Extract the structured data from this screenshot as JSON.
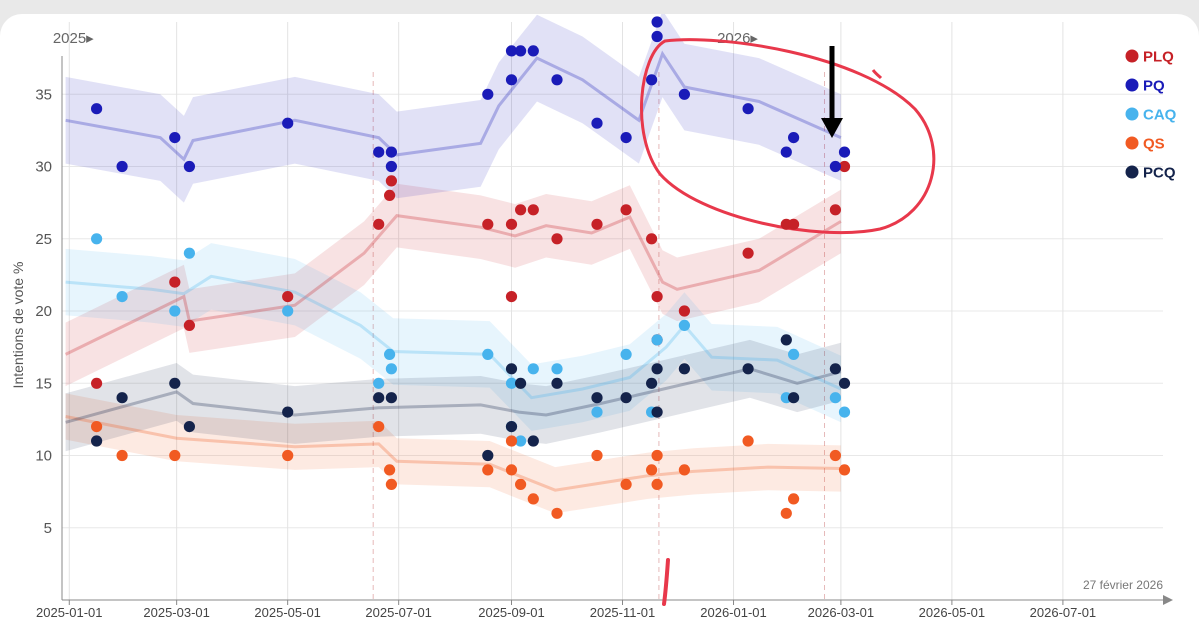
{
  "chart_data": {
    "type": "scatter",
    "ylabel": "Intentions de vote %",
    "ylim": [
      0,
      40
    ],
    "yticks": [
      5,
      10,
      15,
      20,
      25,
      30,
      35
    ],
    "xlim": [
      "2024-12-28",
      "2026-08-25"
    ],
    "xticks": [
      {
        "date": "2025-01-01",
        "label": "2025-01-01"
      },
      {
        "date": "2025-03-01",
        "label": "2025-03-01"
      },
      {
        "date": "2025-05-01",
        "label": "2025-05-01"
      },
      {
        "date": "2025-07-01",
        "label": "2025-07-01"
      },
      {
        "date": "2025-09-01",
        "label": "2025-09-01"
      },
      {
        "date": "2025-11-01",
        "label": "2025-11-01"
      },
      {
        "date": "2026-01-01",
        "label": "2026-01-01"
      },
      {
        "date": "2026-03-01",
        "label": "2026-03-01"
      },
      {
        "date": "2026-05-01",
        "label": "2026-05-01"
      },
      {
        "date": "2026-07-01",
        "label": "2026-07-01"
      }
    ],
    "year_markers": [
      {
        "date": "2025-01-01",
        "label": "2025▸"
      },
      {
        "date": "2026-01-01",
        "label": "2026▸"
      }
    ],
    "date_annotation": "27 février 2026",
    "event_lines": [
      "2025-06-17",
      "2025-11-21",
      "2026-02-20"
    ],
    "series": [
      {
        "name": "PLQ",
        "color": "#c62127",
        "points": [
          [
            "2025-01-16",
            15
          ],
          [
            "2025-02-28",
            22
          ],
          [
            "2025-03-08",
            19
          ],
          [
            "2025-05-01",
            21
          ],
          [
            "2025-06-20",
            26
          ],
          [
            "2025-06-26",
            28
          ],
          [
            "2025-06-27",
            29
          ],
          [
            "2025-08-19",
            26
          ],
          [
            "2025-09-01",
            26
          ],
          [
            "2025-09-01",
            21
          ],
          [
            "2025-09-06",
            27
          ],
          [
            "2025-09-13",
            27
          ],
          [
            "2025-09-26",
            25
          ],
          [
            "2025-10-18",
            26
          ],
          [
            "2025-11-03",
            27
          ],
          [
            "2025-11-17",
            25
          ],
          [
            "2025-11-20",
            21
          ],
          [
            "2025-11-20",
            18
          ],
          [
            "2025-12-05",
            20
          ],
          [
            "2026-01-09",
            24
          ],
          [
            "2026-01-30",
            26
          ],
          [
            "2026-02-03",
            26
          ],
          [
            "2026-02-26",
            27
          ],
          [
            "2026-03-03",
            30
          ]
        ],
        "trend": [
          [
            "2024-12-30",
            17
          ],
          [
            "2025-03-05",
            21
          ],
          [
            "2025-03-08",
            19.3
          ],
          [
            "2025-05-05",
            20.4
          ],
          [
            "2025-06-12",
            24
          ],
          [
            "2025-06-30",
            26.6
          ],
          [
            "2025-08-15",
            25.8
          ],
          [
            "2025-09-03",
            25.2
          ],
          [
            "2025-09-20",
            25.9
          ],
          [
            "2025-10-15",
            25.4
          ],
          [
            "2025-11-05",
            26.5
          ],
          [
            "2025-11-23",
            22
          ],
          [
            "2025-12-01",
            21.5
          ],
          [
            "2026-01-15",
            22.8
          ],
          [
            "2026-03-01",
            26.2
          ]
        ],
        "band": 2.2
      },
      {
        "name": "PQ",
        "color": "#1a1bb8",
        "points": [
          [
            "2025-01-16",
            34
          ],
          [
            "2025-01-30",
            30
          ],
          [
            "2025-02-28",
            32
          ],
          [
            "2025-03-08",
            30
          ],
          [
            "2025-05-01",
            33
          ],
          [
            "2025-06-20",
            31
          ],
          [
            "2025-06-27",
            31
          ],
          [
            "2025-06-27",
            30
          ],
          [
            "2025-08-19",
            35
          ],
          [
            "2025-09-01",
            36
          ],
          [
            "2025-09-01",
            38
          ],
          [
            "2025-09-06",
            38
          ],
          [
            "2025-09-13",
            38
          ],
          [
            "2025-09-26",
            36
          ],
          [
            "2025-10-18",
            33
          ],
          [
            "2025-11-03",
            32
          ],
          [
            "2025-11-17",
            36
          ],
          [
            "2025-11-20",
            40
          ],
          [
            "2025-11-20",
            39
          ],
          [
            "2025-12-05",
            35
          ],
          [
            "2026-01-09",
            34
          ],
          [
            "2026-01-30",
            31
          ],
          [
            "2026-02-03",
            32
          ],
          [
            "2026-02-26",
            30
          ],
          [
            "2026-03-03",
            31
          ]
        ],
        "trend": [
          [
            "2024-12-30",
            33.2
          ],
          [
            "2025-02-20",
            32
          ],
          [
            "2025-03-05",
            30.5
          ],
          [
            "2025-03-10",
            31.8
          ],
          [
            "2025-05-05",
            33.2
          ],
          [
            "2025-06-20",
            32
          ],
          [
            "2025-06-30",
            30.8
          ],
          [
            "2025-08-15",
            31.6
          ],
          [
            "2025-08-25",
            34.2
          ],
          [
            "2025-09-15",
            37.5
          ],
          [
            "2025-10-10",
            36
          ],
          [
            "2025-11-10",
            33.2
          ],
          [
            "2025-11-23",
            37.8
          ],
          [
            "2025-12-05",
            35.5
          ],
          [
            "2026-01-15",
            34.5
          ],
          [
            "2026-03-01",
            32
          ]
        ],
        "band": 3
      },
      {
        "name": "CAQ",
        "color": "#47b3ed",
        "points": [
          [
            "2025-01-16",
            25
          ],
          [
            "2025-01-30",
            21
          ],
          [
            "2025-02-28",
            20
          ],
          [
            "2025-03-08",
            24
          ],
          [
            "2025-05-01",
            20
          ],
          [
            "2025-06-20",
            15
          ],
          [
            "2025-06-26",
            17
          ],
          [
            "2025-06-27",
            16
          ],
          [
            "2025-08-19",
            17
          ],
          [
            "2025-09-01",
            15
          ],
          [
            "2025-09-01",
            12
          ],
          [
            "2025-09-06",
            11
          ],
          [
            "2025-09-13",
            16
          ],
          [
            "2025-09-26",
            16
          ],
          [
            "2025-10-18",
            13
          ],
          [
            "2025-11-03",
            17
          ],
          [
            "2025-11-17",
            13
          ],
          [
            "2025-11-20",
            18
          ],
          [
            "2025-12-05",
            19
          ],
          [
            "2026-01-30",
            14
          ],
          [
            "2026-02-03",
            17
          ],
          [
            "2026-02-26",
            14
          ],
          [
            "2026-03-03",
            13
          ]
        ],
        "trend": [
          [
            "2024-12-30",
            22
          ],
          [
            "2025-02-15",
            21.5
          ],
          [
            "2025-03-05",
            21.2
          ],
          [
            "2025-03-20",
            22.4
          ],
          [
            "2025-05-05",
            21.3
          ],
          [
            "2025-06-10",
            19
          ],
          [
            "2025-06-28",
            17.2
          ],
          [
            "2025-08-20",
            17
          ],
          [
            "2025-09-12",
            14
          ],
          [
            "2025-10-10",
            14.6
          ],
          [
            "2025-11-05",
            15.4
          ],
          [
            "2025-11-25",
            17.5
          ],
          [
            "2025-12-05",
            19
          ],
          [
            "2025-12-20",
            16.8
          ],
          [
            "2026-01-25",
            16.6
          ],
          [
            "2026-03-01",
            14.6
          ]
        ],
        "band": 2.3
      },
      {
        "name": "QS",
        "color": "#f15a22",
        "points": [
          [
            "2025-01-16",
            12
          ],
          [
            "2025-01-30",
            10
          ],
          [
            "2025-02-28",
            10
          ],
          [
            "2025-05-01",
            10
          ],
          [
            "2025-06-20",
            12
          ],
          [
            "2025-06-26",
            9
          ],
          [
            "2025-06-27",
            8
          ],
          [
            "2025-08-19",
            9
          ],
          [
            "2025-09-01",
            11
          ],
          [
            "2025-09-01",
            9
          ],
          [
            "2025-09-06",
            8
          ],
          [
            "2025-09-13",
            7
          ],
          [
            "2025-09-26",
            6
          ],
          [
            "2025-10-18",
            10
          ],
          [
            "2025-11-03",
            8
          ],
          [
            "2025-11-17",
            9
          ],
          [
            "2025-11-20",
            10
          ],
          [
            "2025-11-20",
            8
          ],
          [
            "2025-12-05",
            9
          ],
          [
            "2026-01-09",
            11
          ],
          [
            "2026-01-30",
            6
          ],
          [
            "2026-02-03",
            7
          ],
          [
            "2026-02-26",
            10
          ],
          [
            "2026-03-03",
            9
          ]
        ],
        "trend": [
          [
            "2024-12-30",
            12.7
          ],
          [
            "2025-03-01",
            11.2
          ],
          [
            "2025-05-05",
            10.6
          ],
          [
            "2025-06-20",
            10.8
          ],
          [
            "2025-06-30",
            9.6
          ],
          [
            "2025-08-20",
            9.4
          ],
          [
            "2025-09-25",
            7.6
          ],
          [
            "2025-11-15",
            8.6
          ],
          [
            "2025-12-10",
            8.9
          ],
          [
            "2026-01-20",
            9.2
          ],
          [
            "2026-03-01",
            9.1
          ]
        ],
        "band": 1.6
      },
      {
        "name": "PCQ",
        "color": "#14234b",
        "points": [
          [
            "2025-01-16",
            11
          ],
          [
            "2025-01-30",
            14
          ],
          [
            "2025-02-28",
            15
          ],
          [
            "2025-03-08",
            12
          ],
          [
            "2025-05-01",
            13
          ],
          [
            "2025-06-20",
            14
          ],
          [
            "2025-06-27",
            14
          ],
          [
            "2025-08-19",
            10
          ],
          [
            "2025-09-01",
            16
          ],
          [
            "2025-09-01",
            12
          ],
          [
            "2025-09-06",
            15
          ],
          [
            "2025-09-13",
            11
          ],
          [
            "2025-09-26",
            15
          ],
          [
            "2025-10-18",
            14
          ],
          [
            "2025-11-03",
            14
          ],
          [
            "2025-11-17",
            15
          ],
          [
            "2025-11-20",
            16
          ],
          [
            "2025-11-20",
            13
          ],
          [
            "2025-12-05",
            16
          ],
          [
            "2026-01-09",
            16
          ],
          [
            "2026-01-30",
            18
          ],
          [
            "2026-02-03",
            14
          ],
          [
            "2026-02-26",
            16
          ],
          [
            "2026-03-03",
            15
          ]
        ],
        "trend": [
          [
            "2024-12-30",
            12.3
          ],
          [
            "2025-03-01",
            14.4
          ],
          [
            "2025-03-10",
            13.6
          ],
          [
            "2025-05-05",
            12.8
          ],
          [
            "2025-06-20",
            13.3
          ],
          [
            "2025-08-15",
            13.5
          ],
          [
            "2025-09-05",
            13
          ],
          [
            "2025-09-20",
            12.8
          ],
          [
            "2025-10-20",
            13.6
          ],
          [
            "2025-11-20",
            14.5
          ],
          [
            "2026-01-10",
            16
          ],
          [
            "2026-02-05",
            15
          ],
          [
            "2026-03-01",
            15.8
          ]
        ],
        "band": 2
      }
    ]
  },
  "legend": [
    {
      "label": "PLQ",
      "color": "#c62127"
    },
    {
      "label": "PQ",
      "color": "#1a1bb8"
    },
    {
      "label": "CAQ",
      "color": "#47b3ed"
    },
    {
      "label": "QS",
      "color": "#f15a22"
    },
    {
      "label": "PCQ",
      "color": "#14234b"
    }
  ]
}
